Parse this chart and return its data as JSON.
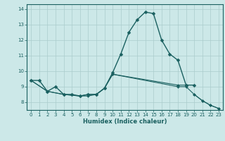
{
  "title": "",
  "xlabel": "Humidex (Indice chaleur)",
  "xlim": [
    -0.5,
    23.5
  ],
  "ylim": [
    7.5,
    14.3
  ],
  "yticks": [
    8,
    9,
    10,
    11,
    12,
    13,
    14
  ],
  "xticks": [
    0,
    1,
    2,
    3,
    4,
    5,
    6,
    7,
    8,
    9,
    10,
    11,
    12,
    13,
    14,
    15,
    16,
    17,
    18,
    19,
    20,
    21,
    22,
    23
  ],
  "bg_color": "#cce8e8",
  "grid_color": "#aacccc",
  "line_color": "#1a6060",
  "series1_x": [
    0,
    1,
    2,
    3,
    4,
    5,
    6,
    7,
    8,
    9,
    10,
    11,
    12,
    13,
    14,
    15,
    16,
    17,
    18,
    19,
    20
  ],
  "series1_y": [
    9.4,
    9.4,
    8.7,
    9.0,
    8.5,
    8.5,
    8.4,
    8.5,
    8.5,
    8.9,
    9.9,
    11.1,
    12.5,
    13.3,
    13.8,
    13.7,
    12.0,
    11.1,
    10.7,
    9.1,
    9.1
  ],
  "series2_x": [
    0,
    2,
    4,
    6,
    7,
    8,
    9,
    10,
    18,
    19
  ],
  "series2_y": [
    9.4,
    8.7,
    8.5,
    8.4,
    8.5,
    8.5,
    8.9,
    9.8,
    9.1,
    9.1
  ],
  "series3_x": [
    20,
    21,
    22,
    23
  ],
  "series3_y": [
    8.5,
    8.1,
    7.8,
    7.6
  ],
  "series4_x": [
    0,
    2,
    4,
    6,
    7,
    8,
    9,
    10,
    18,
    19,
    20,
    21,
    22,
    23
  ],
  "series4_y": [
    9.4,
    8.7,
    8.5,
    8.4,
    8.4,
    8.5,
    8.9,
    9.8,
    9.0,
    9.0,
    8.5,
    8.1,
    7.8,
    7.6
  ]
}
